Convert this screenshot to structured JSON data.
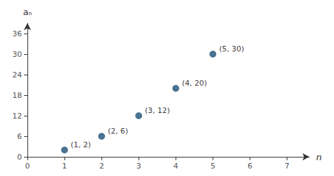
{
  "chart_data": {
    "type": "scatter",
    "x": [
      1,
      2,
      3,
      4,
      5
    ],
    "values": [
      2,
      6,
      12,
      20,
      30
    ],
    "value_labels": [
      "(1, 2)",
      "(2, 6)",
      "(3, 12)",
      "(4, 20)",
      "(5, 30)"
    ],
    "color": "#1d4f76",
    "xlabel": "n",
    "ylabel": "aₙ",
    "xlim": [
      0,
      7.6
    ],
    "ylim": [
      0,
      39
    ],
    "xticks": [
      0,
      1,
      2,
      3,
      4,
      5,
      6,
      7
    ],
    "yticks": [
      0,
      6,
      12,
      18,
      24,
      30,
      36
    ],
    "grid": false
  }
}
